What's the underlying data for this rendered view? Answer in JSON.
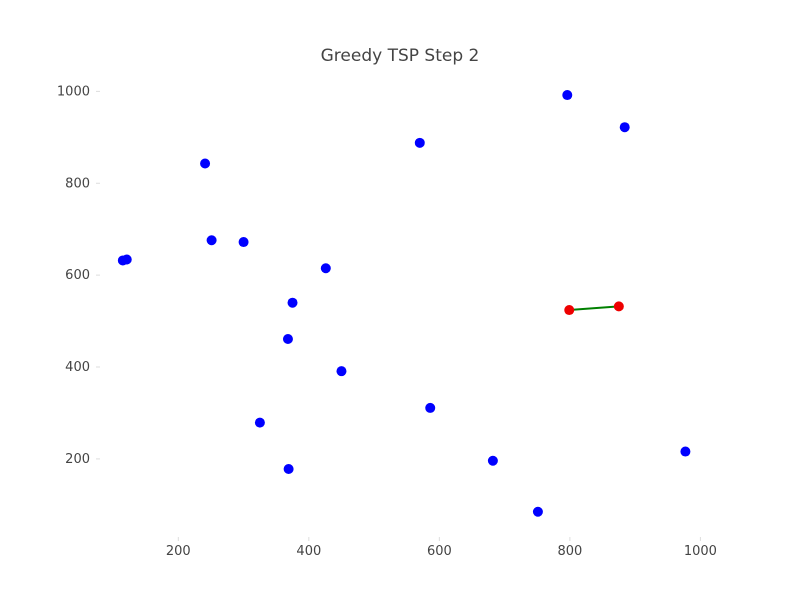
{
  "chart_data": {
    "type": "scatter",
    "title": "Greedy TSP Step 2",
    "xlabel": "",
    "ylabel": "",
    "xlim": [
      80,
      1030
    ],
    "ylim": [
      30,
      1040
    ],
    "xticks": [
      200,
      400,
      600,
      800,
      1000
    ],
    "yticks": [
      200,
      400,
      600,
      800,
      1000
    ],
    "grid": false,
    "colors": {
      "city": "#0000ff",
      "visited": "#ee0000",
      "path": "#008000",
      "ticks": "#444444"
    },
    "series": [
      {
        "kind": "cities",
        "points": [
          [
            115,
            632
          ],
          [
            121,
            634
          ],
          [
            241,
            843
          ],
          [
            251,
            676
          ],
          [
            300,
            672
          ],
          [
            325,
            279
          ],
          [
            368,
            461
          ],
          [
            369,
            178
          ],
          [
            375,
            540
          ],
          [
            426,
            615
          ],
          [
            450,
            391
          ],
          [
            570,
            888
          ],
          [
            586,
            311
          ],
          [
            682,
            196
          ],
          [
            751,
            85
          ],
          [
            796,
            992
          ],
          [
            884,
            922
          ],
          [
            977,
            216
          ]
        ]
      },
      {
        "kind": "visited",
        "points": [
          [
            799,
            524
          ],
          [
            875,
            532
          ]
        ]
      }
    ],
    "path": [
      [
        799,
        524
      ],
      [
        875,
        532
      ]
    ]
  }
}
